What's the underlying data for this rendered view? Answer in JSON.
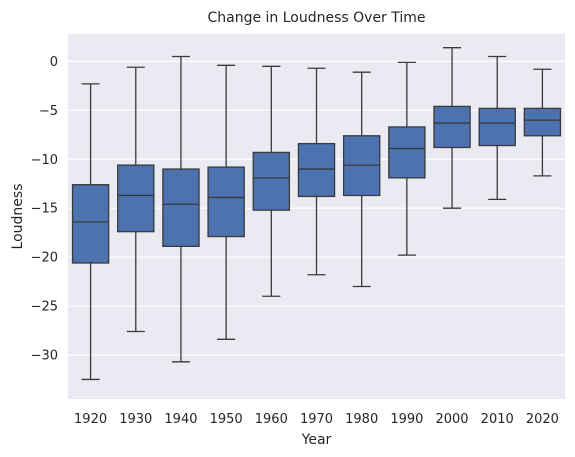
{
  "chart_data": {
    "type": "box",
    "title": "Change in Loudness Over Time",
    "xlabel": "Year",
    "ylabel": "Loudness",
    "ylim": [
      -34.5,
      2.8
    ],
    "yticks": [
      0,
      -5,
      -10,
      -15,
      -20,
      -25,
      -30
    ],
    "grid": true,
    "categories": [
      "1920",
      "1930",
      "1940",
      "1950",
      "1960",
      "1970",
      "1980",
      "1990",
      "2000",
      "2010",
      "2020"
    ],
    "boxes": [
      {
        "whisker_low": -32.5,
        "q1": -20.6,
        "median": -16.4,
        "q3": -12.6,
        "whisker_high": -2.3
      },
      {
        "whisker_low": -27.6,
        "q1": -17.4,
        "median": -13.7,
        "q3": -10.6,
        "whisker_high": -0.6
      },
      {
        "whisker_low": -30.7,
        "q1": -18.9,
        "median": -14.6,
        "q3": -11.0,
        "whisker_high": 0.5
      },
      {
        "whisker_low": -28.4,
        "q1": -17.9,
        "median": -13.9,
        "q3": -10.8,
        "whisker_high": -0.4
      },
      {
        "whisker_low": -24.0,
        "q1": -15.2,
        "median": -11.9,
        "q3": -9.3,
        "whisker_high": -0.5
      },
      {
        "whisker_low": -21.8,
        "q1": -13.8,
        "median": -11.0,
        "q3": -8.4,
        "whisker_high": -0.7
      },
      {
        "whisker_low": -23.0,
        "q1": -13.7,
        "median": -10.6,
        "q3": -7.6,
        "whisker_high": -1.1
      },
      {
        "whisker_low": -19.8,
        "q1": -11.9,
        "median": -8.9,
        "q3": -6.7,
        "whisker_high": -0.1
      },
      {
        "whisker_low": -15.0,
        "q1": -8.8,
        "median": -6.3,
        "q3": -4.6,
        "whisker_high": 1.4
      },
      {
        "whisker_low": -14.1,
        "q1": -8.6,
        "median": -6.3,
        "q3": -4.8,
        "whisker_high": 0.5
      },
      {
        "whisker_low": -11.7,
        "q1": -7.6,
        "median": -6.0,
        "q3": -4.8,
        "whisker_high": -0.8
      }
    ],
    "colors": {
      "plot_background": "#eaeaf2",
      "box_fill": "#4c72b0",
      "line": "#3a3a3a",
      "grid": "#ffffff"
    }
  }
}
